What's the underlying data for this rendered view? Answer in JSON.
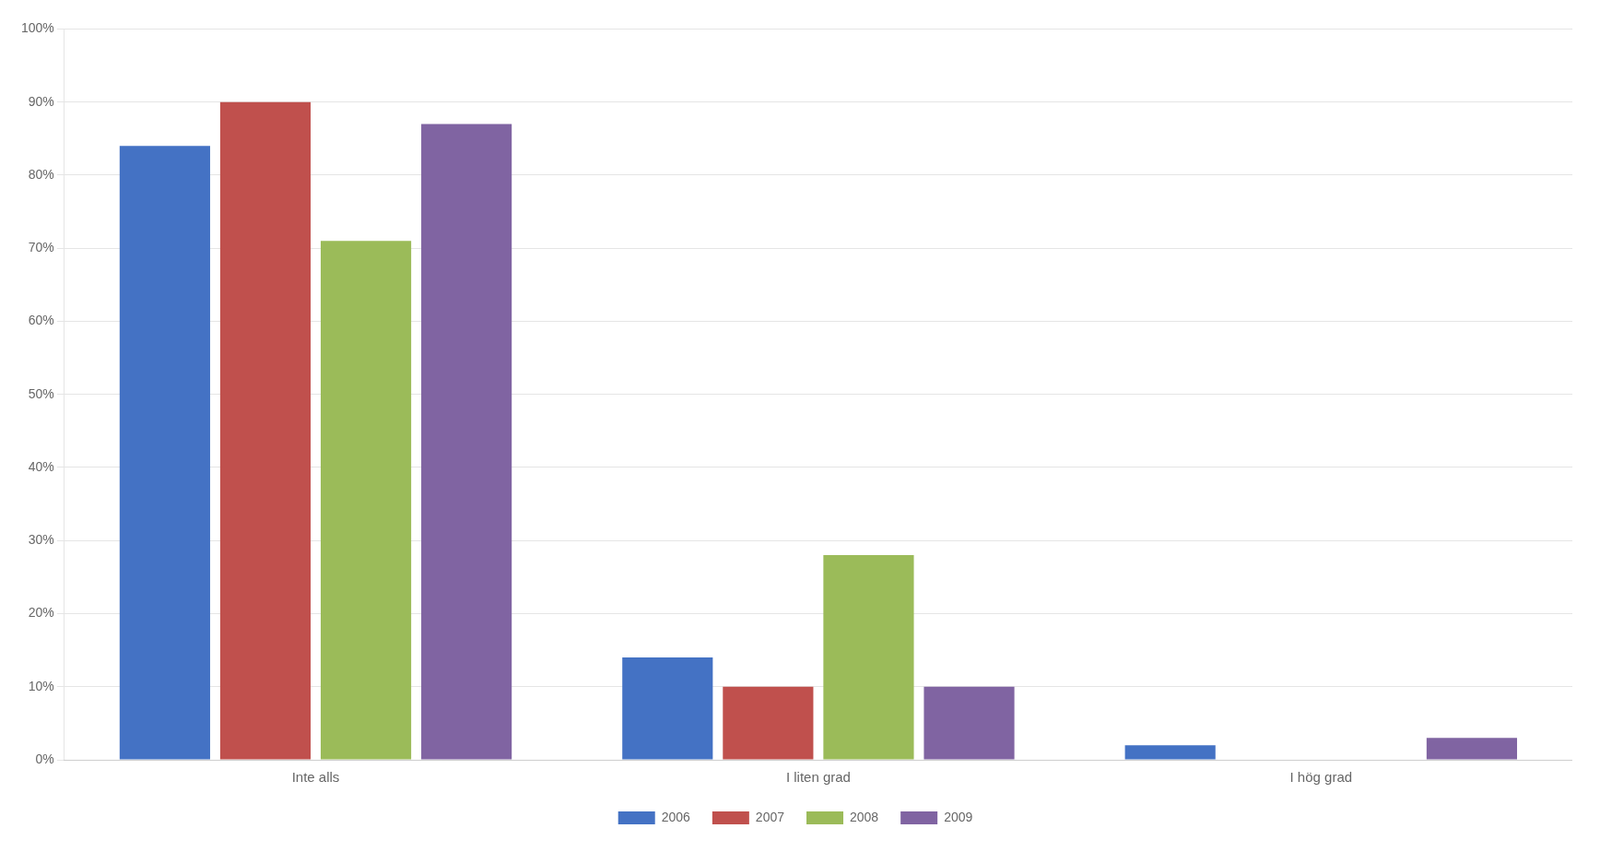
{
  "chart_data": {
    "type": "bar",
    "categories": [
      "Inte alls",
      "I liten grad",
      "I hög grad"
    ],
    "series": [
      {
        "name": "2006",
        "color": "#4472C4",
        "values": [
          84,
          14,
          2
        ]
      },
      {
        "name": "2007",
        "color": "#C0504D",
        "values": [
          90,
          10,
          0
        ]
      },
      {
        "name": "2008",
        "color": "#9BBB59",
        "values": [
          71,
          28,
          0
        ]
      },
      {
        "name": "2009",
        "color": "#8064A2",
        "values": [
          87,
          10,
          3
        ]
      }
    ],
    "ylim": [
      0,
      100
    ],
    "yticks": [
      {
        "value": 0,
        "label": "0%"
      },
      {
        "value": 10,
        "label": "10%"
      },
      {
        "value": 20,
        "label": "20%"
      },
      {
        "value": 30,
        "label": "30%"
      },
      {
        "value": 40,
        "label": "40%"
      },
      {
        "value": 50,
        "label": "50%"
      },
      {
        "value": 60,
        "label": "60%"
      },
      {
        "value": 70,
        "label": "70%"
      },
      {
        "value": 80,
        "label": "80%"
      },
      {
        "value": 90,
        "label": "90%"
      },
      {
        "value": 100,
        "label": "100%"
      }
    ],
    "grid": true,
    "legend": "bottom"
  }
}
